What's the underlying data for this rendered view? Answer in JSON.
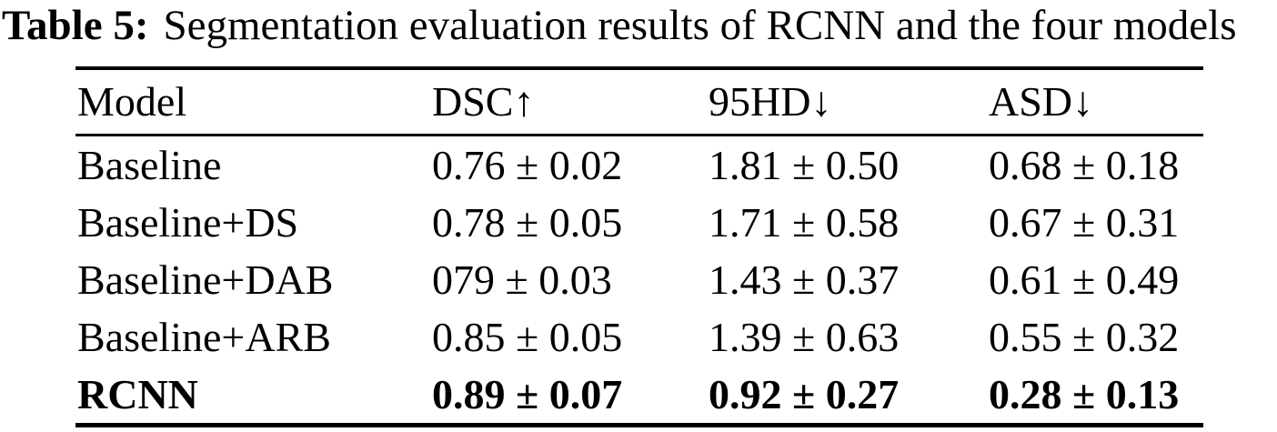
{
  "colors": {
    "text": "#000000",
    "background": "#ffffff",
    "rule": "#000000"
  },
  "caption": {
    "label": "Table 5:",
    "text": "Segmentation evaluation results of RCNN and the four models"
  },
  "table": {
    "columns": [
      "Model",
      "DSC↑",
      "95HD↓",
      "ASD↓"
    ],
    "rows": [
      {
        "model": "Baseline",
        "dsc": "0.76 ± 0.02",
        "hd95": "1.81 ± 0.50",
        "asd": "0.68 ± 0.18",
        "bold": false
      },
      {
        "model": "Baseline+DS",
        "dsc": "0.78 ± 0.05",
        "hd95": "1.71 ± 0.58",
        "asd": "0.67 ± 0.31",
        "bold": false
      },
      {
        "model": "Baseline+DAB",
        "dsc": "079 ± 0.03",
        "hd95": "1.43 ± 0.37",
        "asd": "0.61 ± 0.49",
        "bold": false
      },
      {
        "model": "Baseline+ARB",
        "dsc": "0.85 ± 0.05",
        "hd95": "1.39 ± 0.63",
        "asd": "0.55 ± 0.32",
        "bold": false
      },
      {
        "model": "RCNN",
        "dsc": "0.89 ± 0.07",
        "hd95": "0.92 ± 0.27",
        "asd": "0.28 ± 0.13",
        "bold": true
      }
    ]
  }
}
